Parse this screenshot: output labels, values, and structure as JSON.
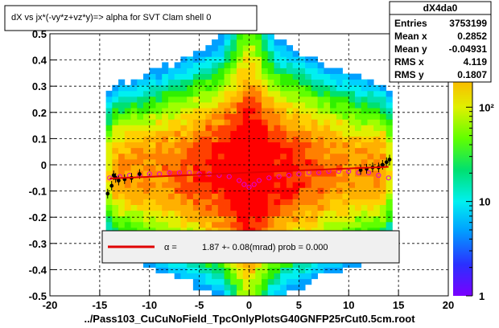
{
  "title": "dX vs    jx*(-vy*z+vz*y)=> alpha for SVT Clam shell 0",
  "footer": "../Pass103_CuCuNoField_TpcOnlyPlotsG40GNFP25rCut0.5cm.root",
  "stats": {
    "name": "dX4da0",
    "rows": [
      {
        "label": "Entries",
        "value": "3753199"
      },
      {
        "label": "Mean x",
        "value": "0.2852"
      },
      {
        "label": "Mean y",
        "value": "-0.04931"
      },
      {
        "label": "RMS x",
        "value": "4.119"
      },
      {
        "label": "RMS y",
        "value": "0.1807"
      }
    ]
  },
  "legend": {
    "alpha_symbol": "α =",
    "fit_text": "1.87 +-     0.08(mrad) prob = 0.000"
  },
  "colors": {
    "fit_line": "#e00000",
    "profile_points": "#000000",
    "secondary_points": "#e000e0"
  },
  "chart_data": {
    "type": "heatmap",
    "xlim": [
      -20,
      20
    ],
    "ylim": [
      -0.5,
      0.5
    ],
    "x_ticks": [
      "-20",
      "-15",
      "-10",
      "-5",
      "0",
      "5",
      "10",
      "15",
      "20"
    ],
    "y_ticks": [
      "-0.5",
      "-0.4",
      "-0.3",
      "-0.2",
      "-0.1",
      "0",
      "0.1",
      "0.2",
      "0.3",
      "0.4",
      "0.5"
    ],
    "z_scale": "log",
    "z_range": [
      1,
      600
    ],
    "z_ticks": [
      "1",
      "10",
      "10²"
    ],
    "grid": true,
    "fit_line": {
      "x": [
        -14,
        14
      ],
      "y": [
        -0.052,
        -0.0076
      ]
    },
    "profile_black": {
      "x": [
        -14.2,
        -13.8,
        -13.6,
        -13.4,
        -13.1,
        -12.5,
        -11.8,
        -11.0,
        11.2,
        11.8,
        12.4,
        13.0,
        13.4,
        13.8,
        14.1
      ],
      "y": [
        -0.11,
        -0.08,
        -0.04,
        -0.05,
        -0.06,
        -0.055,
        -0.05,
        -0.035,
        -0.02,
        -0.015,
        -0.01,
        -0.01,
        0.0,
        0.01,
        0.02
      ]
    },
    "profile_magenta": {
      "x": [
        -14,
        -13,
        -12,
        -11,
        -10,
        -9,
        -8,
        -7,
        -6,
        -5,
        -4,
        -3,
        -2,
        -1,
        -0.5,
        0,
        0.5,
        1,
        2,
        3,
        4,
        5,
        6,
        7,
        8,
        9,
        10,
        11,
        12,
        13,
        14
      ],
      "y": [
        -0.05,
        -0.045,
        -0.04,
        -0.04,
        -0.035,
        -0.035,
        -0.03,
        -0.03,
        -0.03,
        -0.035,
        -0.035,
        -0.04,
        -0.045,
        -0.06,
        -0.075,
        -0.085,
        -0.075,
        -0.06,
        -0.05,
        -0.045,
        -0.04,
        -0.035,
        -0.03,
        -0.03,
        -0.025,
        -0.025,
        -0.025,
        -0.03,
        -0.03,
        -0.04,
        -0.05
      ]
    }
  }
}
